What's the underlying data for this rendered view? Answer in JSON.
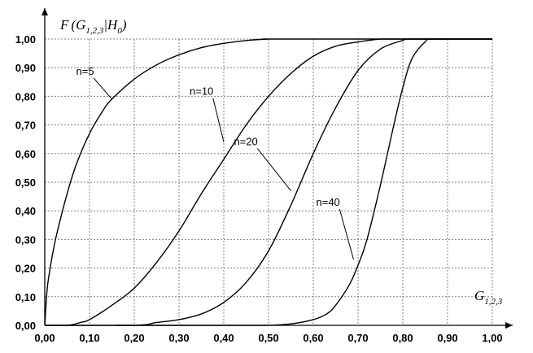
{
  "chart_data": {
    "type": "line",
    "ylabel_parts": {
      "func": "F",
      "var": "G",
      "var_sub": "1,2,3",
      "bar": "|",
      "cond": "H",
      "cond_sub": "0"
    },
    "xlabel_parts": {
      "var": "G",
      "var_sub": "1,2,3"
    },
    "xlim": [
      0,
      1
    ],
    "ylim": [
      0,
      1
    ],
    "x_ticks": [
      "0,00",
      "0,10",
      "0,20",
      "0,30",
      "0,40",
      "0,50",
      "0,60",
      "0,70",
      "0,80",
      "0,90",
      "1,00"
    ],
    "y_ticks": [
      "0,00",
      "0,10",
      "0,20",
      "0,30",
      "0,40",
      "0,50",
      "0,60",
      "0,70",
      "0,80",
      "0,90",
      "1,00"
    ],
    "grid": true,
    "series": [
      {
        "name": "n=5",
        "x": [
          0.0,
          0.005,
          0.01,
          0.02,
          0.03,
          0.05,
          0.07,
          0.1,
          0.13,
          0.15,
          0.2,
          0.25,
          0.3,
          0.35,
          0.4,
          0.45,
          0.5,
          0.53,
          1.0
        ],
        "y": [
          0.0,
          0.12,
          0.18,
          0.27,
          0.34,
          0.46,
          0.56,
          0.67,
          0.75,
          0.79,
          0.86,
          0.91,
          0.945,
          0.97,
          0.985,
          0.995,
          1.0,
          1.0,
          1.0
        ]
      },
      {
        "name": "n=10",
        "x": [
          0.0,
          0.05,
          0.08,
          0.1,
          0.15,
          0.2,
          0.25,
          0.3,
          0.35,
          0.4,
          0.45,
          0.5,
          0.55,
          0.6,
          0.65,
          0.7,
          0.75,
          0.78,
          0.8,
          1.0
        ],
        "y": [
          0.0,
          0.0,
          0.01,
          0.02,
          0.07,
          0.13,
          0.22,
          0.33,
          0.46,
          0.58,
          0.7,
          0.8,
          0.88,
          0.94,
          0.975,
          0.99,
          1.0,
          1.0,
          1.0,
          1.0
        ]
      },
      {
        "name": "n=20",
        "x": [
          0.0,
          0.2,
          0.25,
          0.3,
          0.35,
          0.4,
          0.45,
          0.5,
          0.55,
          0.6,
          0.65,
          0.7,
          0.75,
          0.8,
          0.82,
          1.0
        ],
        "y": [
          0.0,
          0.0,
          0.01,
          0.02,
          0.04,
          0.08,
          0.15,
          0.26,
          0.42,
          0.6,
          0.76,
          0.89,
          0.965,
          0.995,
          1.0,
          1.0
        ]
      },
      {
        "name": "n=40",
        "x": [
          0.16,
          0.3,
          0.45,
          0.5,
          0.55,
          0.6,
          0.63,
          0.65,
          0.68,
          0.7,
          0.72,
          0.75,
          0.78,
          0.8,
          0.82,
          0.85,
          0.87,
          1.0
        ],
        "y": [
          0.0,
          0.0,
          0.0,
          0.0,
          0.005,
          0.02,
          0.04,
          0.07,
          0.14,
          0.21,
          0.3,
          0.49,
          0.7,
          0.83,
          0.93,
          0.99,
          1.0,
          1.0
        ]
      }
    ],
    "curve_labels": [
      {
        "text": "n=5",
        "series": "n=5",
        "anchor_x": 0.15,
        "anchor_y": 0.79
      },
      {
        "text": "n=10",
        "series": "n=10",
        "anchor_x": 0.4,
        "anchor_y": 0.64
      },
      {
        "text": "n=20",
        "series": "n=20",
        "anchor_x": 0.55,
        "anchor_y": 0.47
      },
      {
        "text": "n=40",
        "series": "n=40",
        "anchor_x": 0.69,
        "anchor_y": 0.23
      }
    ]
  }
}
